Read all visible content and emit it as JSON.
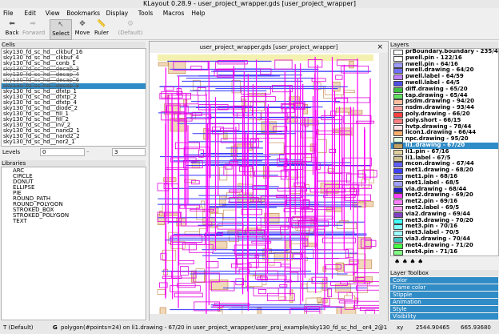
{
  "window": {
    "title": "KLayout 0.28.9 - user_project_wrapper.gds [user_project_wrapper]"
  },
  "menu": [
    "File",
    "Edit",
    "View",
    "Bookmarks",
    "Display",
    "Tools",
    "Macros",
    "Help"
  ],
  "toolbar": [
    {
      "label": "Back",
      "enabled": true
    },
    {
      "label": "Forward",
      "enabled": false
    },
    {
      "label": "Select",
      "enabled": true,
      "active": true
    },
    {
      "label": "Move",
      "enabled": true
    },
    {
      "label": "Ruler",
      "enabled": true
    },
    {
      "label": "(Default)",
      "enabled": false
    }
  ],
  "cells": {
    "title": "Cells",
    "items": [
      {
        "name": "sky130_fd_sc_hd__clkbuf_16"
      },
      {
        "name": "sky130_fd_sc_hd__clkbuf_4"
      },
      {
        "name": "sky130_fd_sc_hd__conb_1"
      },
      {
        "name": "sky130_fd_sc_hd__decap_3",
        "ghost": true
      },
      {
        "name": "sky130_fd_sc_hd__decap_4",
        "ghost": true
      },
      {
        "name": "sky130_fd_sc_hd__decap_6",
        "ghost": true
      },
      {
        "name": "sky130_fd_sc_hd__decap_8",
        "ghost": true,
        "selected": true
      },
      {
        "name": "sky130_fd_sc_hd__dfxtp_1"
      },
      {
        "name": "sky130_fd_sc_hd__dfxtp_2"
      },
      {
        "name": "sky130_fd_sc_hd__dfxtp_4"
      },
      {
        "name": "sky130_fd_sc_hd__diode_2"
      },
      {
        "name": "sky130_fd_sc_hd__fill_1"
      },
      {
        "name": "sky130_fd_sc_hd__fill_2"
      },
      {
        "name": "sky130_fd_sc_hd__inv_2"
      },
      {
        "name": "sky130_fd_sc_hd__nand2_1"
      },
      {
        "name": "sky130_fd_sc_hd__nand2_2"
      },
      {
        "name": "sky130_fd_sc_hd__nor2_1"
      }
    ]
  },
  "levels": {
    "label": "Levels",
    "from": "0",
    "to": "3"
  },
  "libraries": {
    "title": "Libraries",
    "items": [
      "ARC",
      "CIRCLE",
      "DONUT",
      "ELLIPSE",
      "PIE",
      "ROUND_PATH",
      "ROUND_POLYGON",
      "STROKED_BOX",
      "STROKED_POLYGON",
      "TEXT"
    ]
  },
  "layout_tab": "user_project_wrapper.gds [user_project_wrapper]",
  "layers": {
    "title": "Layers",
    "items": [
      {
        "name": "prBoundary.boundary - 235/4",
        "color": "#ffffff"
      },
      {
        "name": "pwell.pin - 122/16",
        "color": "#ffffff"
      },
      {
        "name": "nwell.pin - 64/16",
        "color": "#9c9cff"
      },
      {
        "name": "nwell.drawing - 64/20",
        "color": "#7070ff"
      },
      {
        "name": "pwell.label - 64/59",
        "color": "#c080ff"
      },
      {
        "name": "nwell.label - 64/5",
        "color": "#5050e0"
      },
      {
        "name": "diff.drawing - 65/20",
        "color": "#40c040"
      },
      {
        "name": "tap.drawing - 65/44",
        "color": "#60e060"
      },
      {
        "name": "psdm.drawing - 94/20",
        "color": "#ffc0a0"
      },
      {
        "name": "nsdm.drawing - 93/44",
        "color": "#ffa0a0"
      },
      {
        "name": "poly.drawing - 66/20",
        "color": "#ff4040"
      },
      {
        "name": "poly.short - 66/15",
        "color": "#ff8080"
      },
      {
        "name": "hvtp.drawing - 78/44",
        "color": "#ffe0e0"
      },
      {
        "name": "licon1.drawing - 66/44",
        "color": "#ffb070"
      },
      {
        "name": "npc.drawing - 95/20",
        "color": "#e0ffe0"
      },
      {
        "name": "li1.drawing - 67/20",
        "color": "#c0a060",
        "selected": true
      },
      {
        "name": "li1.pin - 67/16",
        "color": "#e0d0a0"
      },
      {
        "name": "li1.label - 67/5",
        "color": "#d0c090"
      },
      {
        "name": "mcon.drawing - 67/44",
        "color": "#6060ff"
      },
      {
        "name": "met1.drawing - 68/20",
        "color": "#4040ff"
      },
      {
        "name": "met1.pin - 68/16",
        "color": "#8080ff"
      },
      {
        "name": "met1.label - 68/5",
        "color": "#a0a0ff"
      },
      {
        "name": "via.drawing - 68/44",
        "color": "#2020c0"
      },
      {
        "name": "met2.drawing - 69/20",
        "color": "#ff40ff"
      },
      {
        "name": "met2.pin - 69/16",
        "color": "#ff80ff"
      },
      {
        "name": "met2.label - 69/5",
        "color": "#ffa0ff"
      },
      {
        "name": "via2.drawing - 69/44",
        "color": "#8040c0"
      },
      {
        "name": "met3.drawing - 70/20",
        "color": "#40ffff"
      },
      {
        "name": "met3.pin - 70/16",
        "color": "#80ffff"
      },
      {
        "name": "met3.label - 70/5",
        "color": "#a0ffff"
      },
      {
        "name": "via3.drawing - 70/44",
        "color": "#40c0c0"
      },
      {
        "name": "met4.drawing - 71/20",
        "color": "#40ff40"
      },
      {
        "name": "met4.pin - 71/16",
        "color": "#80ff80"
      }
    ]
  },
  "layer_toolbox": {
    "title": "Layer Toolbox",
    "items": [
      "Color",
      "Frame color",
      "Stipple",
      "Animation",
      "Style",
      "Visibility"
    ]
  },
  "status": {
    "mode": "T (Default)",
    "grid": "G",
    "message": "polygon(#points=24) on li1.drawing - 67/20 in user_project_wrapper/user_proj_example/sky130_fd_sc_hd__or4_2@1",
    "xy_label": "xy",
    "x": "2544.90465",
    "y": "665.93680"
  }
}
